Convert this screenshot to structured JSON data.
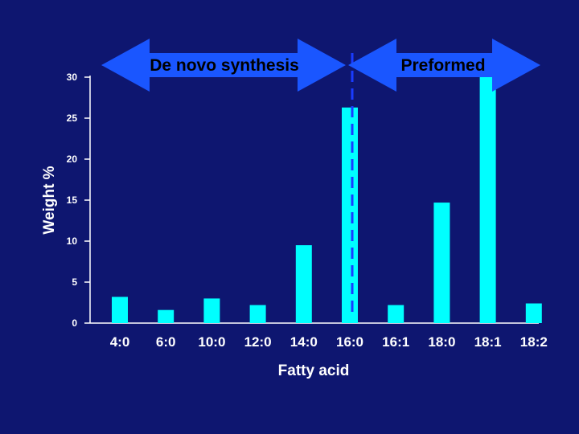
{
  "colors": {
    "background": "#0e1670",
    "bar": "#00ffff",
    "axis": "#ffffff",
    "arrow": "#1a56ff",
    "divider": "#1a3cff"
  },
  "chart_data": {
    "type": "bar",
    "xlabel": "Fatty acid",
    "ylabel": "Weight %",
    "ylim": [
      0,
      30
    ],
    "yticks": [
      0,
      5,
      10,
      15,
      20,
      25,
      30
    ],
    "categories": [
      "4:0",
      "6:0",
      "10:0",
      "12:0",
      "14:0",
      "16:0",
      "16:1",
      "18:0",
      "18:1",
      "18:2"
    ],
    "values": [
      3.2,
      1.6,
      3.0,
      2.2,
      9.5,
      26.3,
      2.2,
      14.7,
      30,
      2.4
    ],
    "grid": false,
    "annotations": [
      {
        "label": "De novo synthesis",
        "range": [
          "4:0",
          "16:0"
        ],
        "shape": "double-arrow"
      },
      {
        "label": "Preformed",
        "range": [
          "16:1",
          "18:2"
        ],
        "shape": "double-arrow"
      }
    ],
    "divider": {
      "between": [
        "16:0",
        "16:1"
      ],
      "style": "dashed"
    }
  }
}
